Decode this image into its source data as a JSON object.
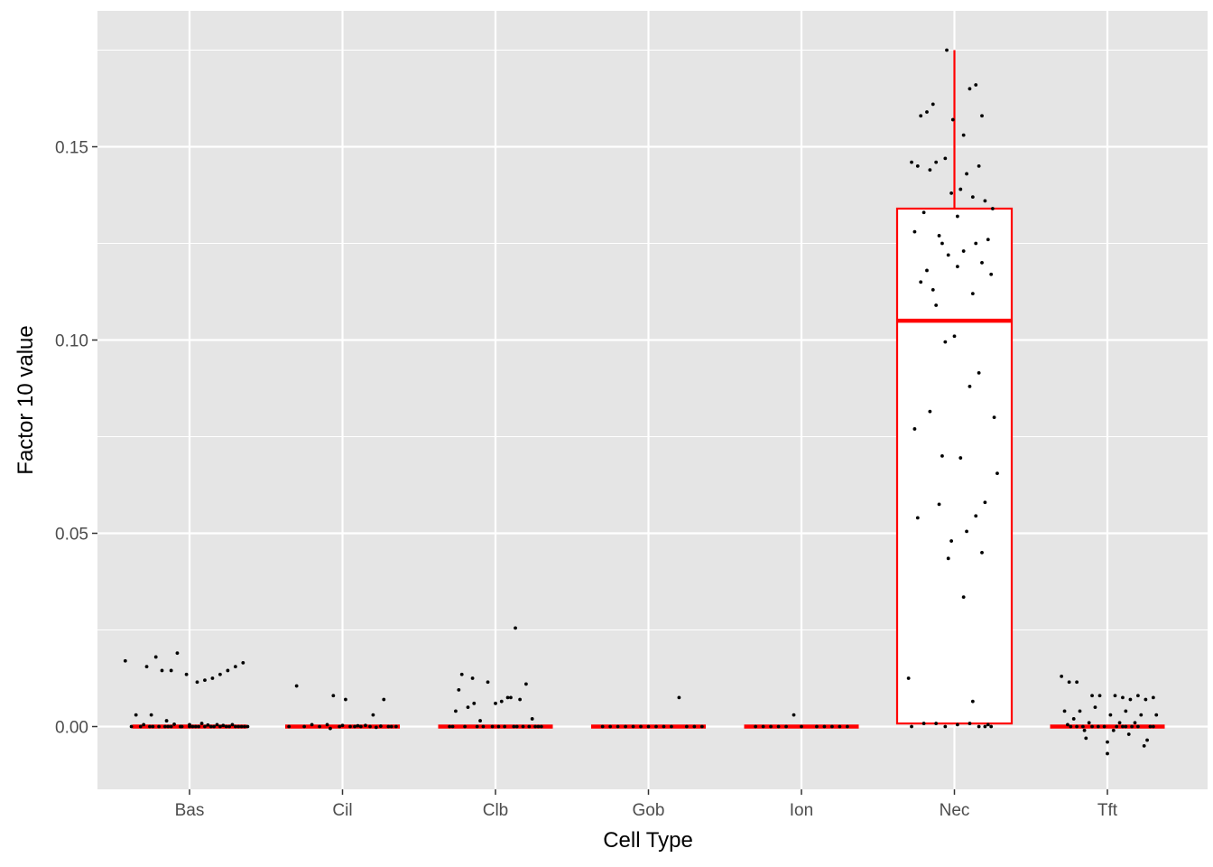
{
  "chart_data": {
    "type": "box",
    "xlabel": "Cell Type",
    "ylabel": "Factor 10 value",
    "categories": [
      "Bas",
      "Cil",
      "Clb",
      "Gob",
      "Ion",
      "Nec",
      "Tft"
    ],
    "ylim": [
      -0.0165,
      0.185
    ],
    "yticks": [
      0.0,
      0.05,
      0.1,
      0.15
    ],
    "ytick_labels": [
      "0.00",
      "0.05",
      "0.10",
      "0.15"
    ],
    "grid": true,
    "legend": "none",
    "colors": {
      "panel_background": "#e5e5e5",
      "grid": "#ffffff",
      "box_outline": "#ff0000",
      "box_fill": "#ffffff",
      "points": "#000000"
    },
    "boxes": [
      {
        "category": "Bas",
        "min": 0,
        "q1": 0,
        "median": 0,
        "q3": 0,
        "max": 0
      },
      {
        "category": "Cil",
        "min": 0,
        "q1": 0,
        "median": 0,
        "q3": 0,
        "max": 0
      },
      {
        "category": "Clb",
        "min": 0,
        "q1": 0,
        "median": 0,
        "q3": 0,
        "max": 0
      },
      {
        "category": "Gob",
        "min": 0,
        "q1": 0,
        "median": 0,
        "q3": 0,
        "max": 0
      },
      {
        "category": "Ion",
        "min": 0,
        "q1": 0,
        "median": 0,
        "q3": 0,
        "max": 0
      },
      {
        "category": "Nec",
        "min": 0.0008,
        "q1": 0.0008,
        "median": 0.105,
        "q3": 0.134,
        "max": 0.175
      },
      {
        "category": "Tft",
        "min": 0,
        "q1": 0,
        "median": 0,
        "q3": 0,
        "max": 0
      }
    ],
    "points": [
      {
        "category": "Bas",
        "jitter": [
          -0.42,
          -0.28,
          -0.22,
          -0.18,
          -0.12,
          -0.08,
          -0.02,
          0.05,
          0.1,
          0.15,
          0.2,
          0.25,
          0.3,
          0.35,
          -0.35,
          -0.25,
          -0.15,
          0.0,
          0.08,
          0.18,
          0.28,
          -0.3,
          -0.1,
          0.12,
          0.22,
          -0.38,
          -0.05,
          0.32,
          -0.2,
          0.02,
          0.26,
          -0.32,
          0.14,
          -0.26,
          -0.14,
          0.04,
          0.16,
          0.24,
          0.36,
          -0.06,
          0.06,
          -0.16,
          -0.24,
          0.2,
          0.3,
          0.38,
          0.0,
          0.1,
          -0.12,
          0.34
        ],
        "values": [
          0.017,
          0.0155,
          0.018,
          0.0145,
          0.0145,
          0.019,
          0.0135,
          0.0115,
          0.012,
          0.0125,
          0.0135,
          0.0145,
          0.0155,
          0.0165,
          0.003,
          0.003,
          0.0015,
          0.0005,
          0.0008,
          0.0005,
          0.0005,
          0.0005,
          0.0006,
          0.0004,
          0.0003,
          0.0,
          0.0,
          0.0,
          0.0,
          0.0,
          0.0,
          0.0,
          0.0,
          0.0,
          0.0,
          0.0,
          0.0,
          0.0,
          0.0,
          0.0,
          0.0,
          0.0,
          0.0,
          0.0,
          0.0,
          0.0,
          0.0,
          0.0,
          0.0,
          0.0
        ]
      },
      {
        "category": "Cil",
        "jitter": [
          -0.3,
          -0.06,
          0.02,
          0.2,
          0.27,
          -0.2,
          -0.1,
          0.0,
          0.1,
          0.15,
          0.25,
          -0.25,
          -0.15,
          0.05,
          0.12,
          0.3,
          0.35,
          -0.35,
          -0.08,
          0.08,
          0.18,
          0.22,
          -0.02,
          0.32
        ],
        "values": [
          0.0105,
          0.008,
          0.007,
          0.003,
          0.007,
          0.0005,
          0.0005,
          0.0003,
          0.0002,
          0.0003,
          0.0001,
          0.0,
          0.0,
          0.0,
          0.0,
          0.0,
          0.0,
          0.0,
          -0.0005,
          0.0,
          0.0,
          -0.0002,
          0.0,
          0.0
        ]
      },
      {
        "category": "Clb",
        "jitter": [
          0.13,
          -0.22,
          -0.15,
          -0.05,
          0.2,
          -0.24,
          -0.26,
          -0.1,
          0.04,
          0.0,
          0.08,
          0.16,
          -0.18,
          0.1,
          -0.14,
          -0.3,
          -0.02,
          0.06,
          0.12,
          0.18,
          0.22,
          0.26,
          -0.28,
          -0.08,
          0.02,
          0.14,
          0.3,
          -0.2,
          0.24,
          0.28,
          -0.12
        ],
        "values": [
          0.0255,
          0.0135,
          0.0125,
          0.0115,
          0.011,
          0.0095,
          0.004,
          0.0015,
          0.0065,
          0.006,
          0.0075,
          0.007,
          0.005,
          0.0075,
          0.006,
          0.0,
          0.0,
          0.0,
          0.0,
          0.0,
          0.0,
          0.0,
          0.0,
          0.0,
          0.0,
          0.0,
          0.0,
          0.0,
          0.002,
          0.0,
          0.0
        ]
      },
      {
        "category": "Gob",
        "jitter": [
          0.2,
          -0.3,
          -0.2,
          -0.1,
          0.0,
          0.1,
          0.15,
          0.25,
          0.3,
          -0.25,
          -0.15,
          0.05,
          0.35,
          -0.05
        ],
        "values": [
          0.0075,
          0.0,
          0.0,
          0.0,
          0.0,
          0.0,
          0.0,
          0.0,
          0.0,
          0.0,
          0.0,
          0.0,
          0.0,
          0.0
        ]
      },
      {
        "category": "Ion",
        "jitter": [
          -0.05,
          -0.3,
          -0.2,
          -0.1,
          0.0,
          0.1,
          0.15,
          0.2,
          0.25,
          0.3,
          -0.25,
          -0.15
        ],
        "values": [
          0.003,
          0.0,
          0.0,
          0.0,
          0.0,
          0.0,
          0.0,
          0.0,
          0.0,
          0.0,
          0.0,
          0.0
        ]
      },
      {
        "category": "Nec",
        "jitter": [
          -0.05,
          0.1,
          0.14,
          -0.14,
          -0.18,
          -0.22,
          -0.28,
          -0.01,
          0.06,
          0.18,
          -0.12,
          0.16,
          -0.06,
          0.08,
          -0.24,
          -0.16,
          0.04,
          -0.02,
          0.12,
          0.2,
          -0.2,
          0.25,
          0.02,
          -0.26,
          -0.1,
          -0.08,
          0.22,
          0.14,
          -0.04,
          0.06,
          0.18,
          -0.18,
          0.02,
          0.24,
          -0.22,
          -0.14,
          0.12,
          -0.12,
          0.0,
          -0.06,
          0.16,
          -0.16,
          0.1,
          0.26,
          -0.26,
          0.04,
          -0.08,
          0.28,
          -0.1,
          0.2,
          0.14,
          -0.24,
          0.08,
          -0.02,
          0.18,
          -0.04,
          0.06,
          -0.3,
          0.12,
          -0.2,
          0.1,
          0.22,
          -0.12,
          0.02,
          0.2,
          -0.28,
          0.24,
          -0.06,
          0.16
        ],
        "values": [
          0.175,
          0.165,
          0.166,
          0.161,
          0.159,
          0.158,
          0.146,
          0.157,
          0.153,
          0.158,
          0.146,
          0.145,
          0.147,
          0.143,
          0.145,
          0.144,
          0.139,
          0.138,
          0.137,
          0.136,
          0.133,
          0.134,
          0.132,
          0.128,
          0.127,
          0.125,
          0.126,
          0.125,
          0.122,
          0.123,
          0.12,
          0.118,
          0.119,
          0.117,
          0.115,
          0.113,
          0.112,
          0.109,
          0.101,
          0.0995,
          0.0915,
          0.0815,
          0.088,
          0.08,
          0.077,
          0.0695,
          0.07,
          0.0655,
          0.0575,
          0.058,
          0.0545,
          0.054,
          0.0505,
          0.048,
          0.045,
          0.0435,
          0.0335,
          0.0125,
          0.0065,
          0.0008,
          0.0008,
          0.0005,
          0.0008,
          0.0005,
          0.0,
          0.0,
          0.0,
          0.0,
          0.0
        ]
      },
      {
        "category": "Tft",
        "jitter": [
          -0.3,
          0.0,
          -0.25,
          -0.2,
          -0.1,
          -0.05,
          0.05,
          0.1,
          0.15,
          0.2,
          0.25,
          0.3,
          -0.28,
          -0.18,
          -0.08,
          0.02,
          0.12,
          0.22,
          0.32,
          -0.22,
          -0.12,
          0.08,
          0.18,
          -0.15,
          0.04,
          0.14,
          0.24,
          -0.26,
          -0.06,
          0.06,
          0.16,
          0.28,
          -0.02,
          -0.14,
          0.26,
          -0.24,
          0.1,
          0.2,
          -0.16,
          0.3,
          -0.1,
          0.0,
          0.12,
          -0.2
        ],
        "values": [
          0.013,
          -0.007,
          0.0115,
          0.0115,
          0.008,
          0.008,
          0.008,
          0.0075,
          0.007,
          0.008,
          0.007,
          0.0075,
          0.004,
          0.004,
          0.005,
          0.003,
          0.004,
          0.003,
          0.003,
          0.002,
          0.001,
          0.001,
          0.001,
          -0.001,
          -0.001,
          -0.002,
          -0.005,
          0.0005,
          0.0,
          0.0,
          0.0,
          0.0,
          0.0,
          -0.003,
          -0.0035,
          0.0,
          0.0,
          0.0,
          0.0,
          0.0,
          0.0,
          -0.004,
          0.0,
          0.0
        ]
      }
    ]
  }
}
